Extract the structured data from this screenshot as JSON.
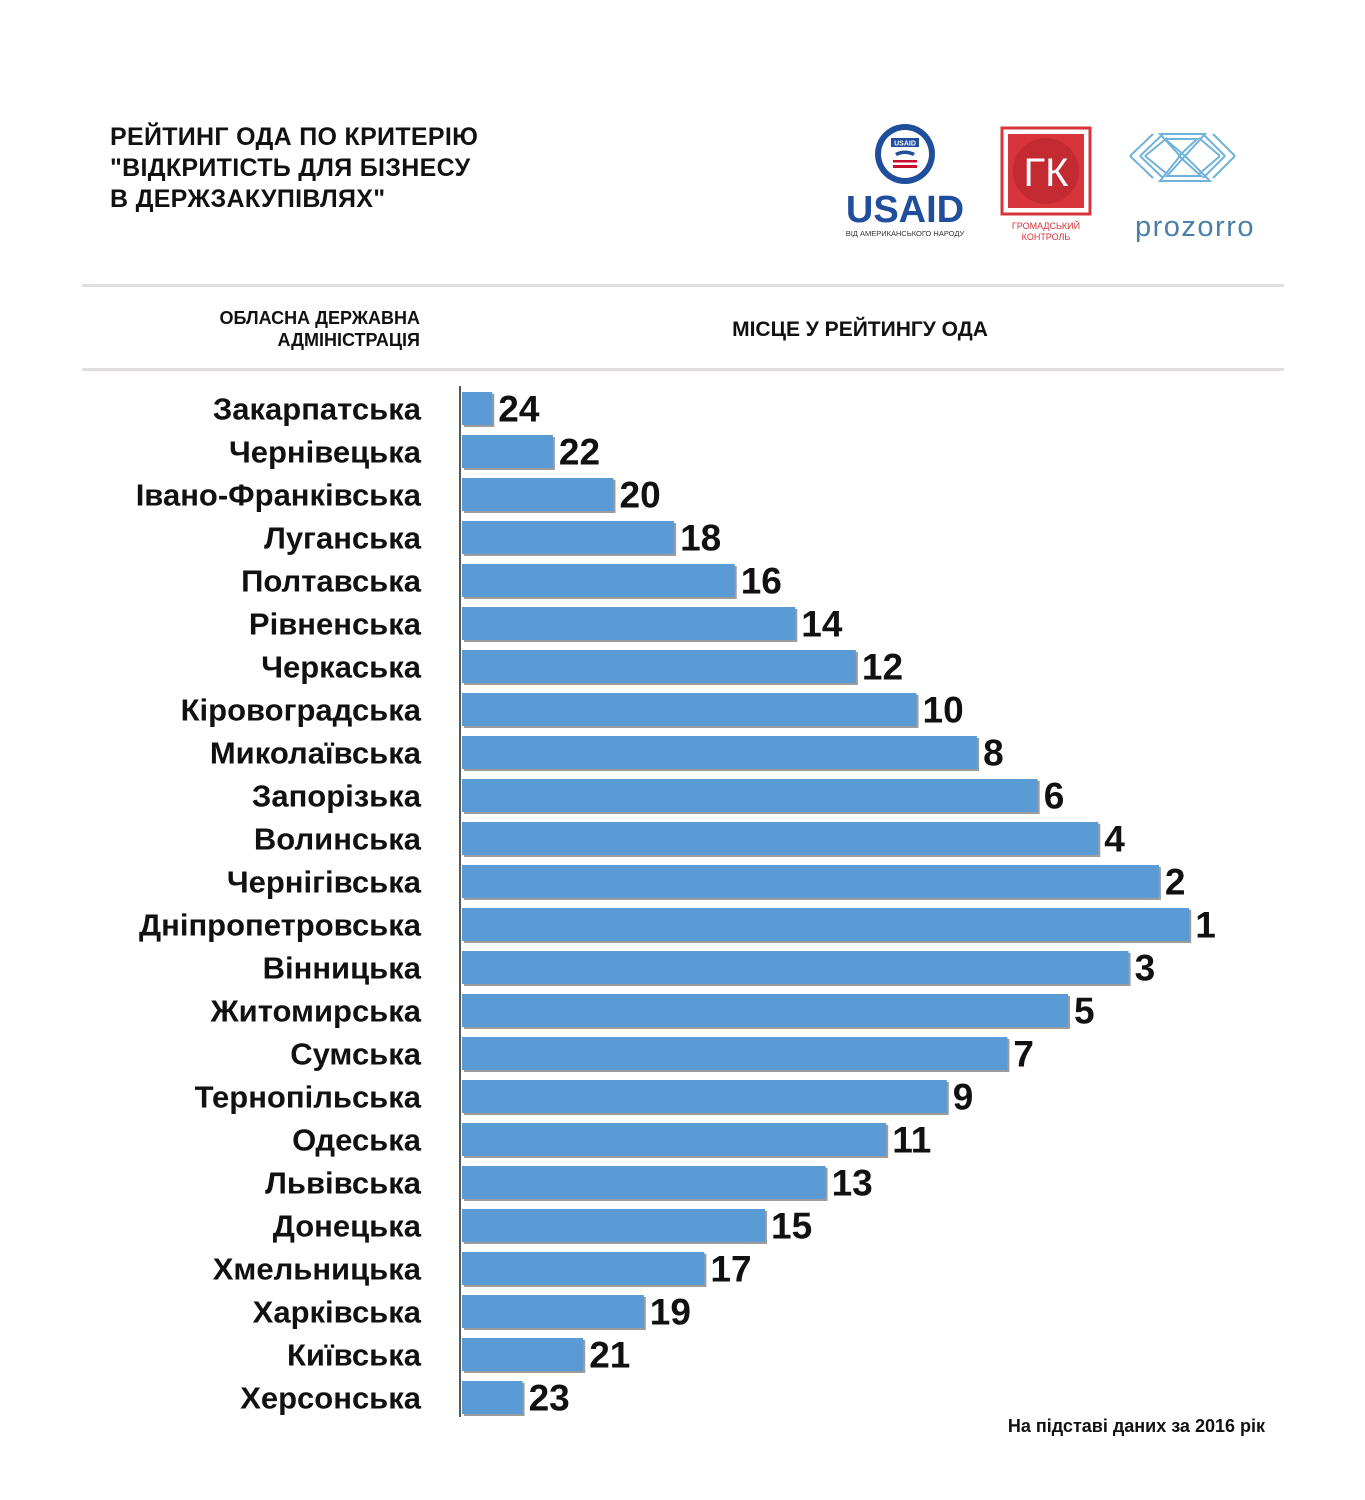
{
  "header": {
    "title_lines": [
      "РЕЙТИНГ ОДА ПО КРИТЕРІЮ",
      "\"ВІДКРИТІСТЬ ДЛЯ БІЗНЕСУ",
      "В ДЕРЖЗАКУПІВЛЯХ\""
    ]
  },
  "logos": {
    "usaid": {
      "text": "USAID",
      "subtext": "ВІД АМЕРИКАНСЬКОГО НАРОДУ",
      "seal_text": "USAID",
      "color_blue": "#1f4e9c",
      "color_red": "#c8102e"
    },
    "gk": {
      "text": "ГК",
      "subtext_line1": "ГРОМАДСЬКИЙ",
      "subtext_line2": "КОНТРОЛЬ",
      "color": "#d8343b"
    },
    "prozorro": {
      "text": "prozorro",
      "color": "#4a7fa8",
      "mark_color": "#6fb3d9"
    }
  },
  "columns": {
    "left_line1": "ОБЛАСНА ДЕРЖАВНА",
    "left_line2": "АДМІНІСТРАЦІЯ",
    "right": "МІСЦЕ У РЕЙТИНГУ ОДА"
  },
  "footnote": "На підставі даних за 2016 рік",
  "chart_data": {
    "type": "bar",
    "orientation": "horizontal",
    "title": "РЕЙТИНГ ОДА ПО КРИТЕРІЮ \"ВІДКРИТІСТЬ ДЛЯ БІЗНЕСУ В ДЕРЖЗАКУПІВЛЯХ\"",
    "xlabel": "МІСЦЕ У РЕЙТИНГУ ОДА",
    "ylabel": "ОБЛАСНА ДЕРЖАВНА АДМІНІСТРАЦІЯ",
    "categories": [
      "Закарпатська",
      "Чернівецька",
      "Івано-Франківська",
      "Луганська",
      "Полтавська",
      "Рівненська",
      "Черкаська",
      "Кіровоградська",
      "Миколаївська",
      "Запорізька",
      "Волинська",
      "Чернігівська",
      "Дніпропетровська",
      "Вінницька",
      "Житомирська",
      "Сумська",
      "Тернопільська",
      "Одеська",
      "Львівська",
      "Донецька",
      "Хмельницька",
      "Харківська",
      "Київська",
      "Херсонська"
    ],
    "values": [
      24,
      22,
      20,
      18,
      16,
      14,
      12,
      10,
      8,
      6,
      4,
      2,
      1,
      3,
      5,
      7,
      9,
      11,
      13,
      15,
      17,
      19,
      21,
      23
    ],
    "bar_length_note": "bar length is inversely proportional to rank (rank 1 longest)",
    "max_rank": 25,
    "bar_color": "#5b9bd5",
    "grid": false
  }
}
